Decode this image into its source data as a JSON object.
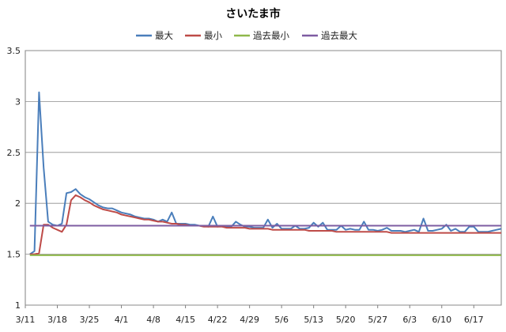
{
  "chart_data": {
    "type": "line",
    "title": "さいたま市",
    "xlabel": "",
    "ylabel": "",
    "ylim": [
      1,
      3.5
    ],
    "yticks": [
      "1",
      "1.5",
      "2",
      "2.5",
      "3",
      "3.5"
    ],
    "x_tick_labels": [
      "3/11",
      "3/18",
      "3/25",
      "4/1",
      "4/8",
      "4/15",
      "4/22",
      "4/29",
      "5/6",
      "5/13",
      "5/20",
      "5/27",
      "6/3",
      "6/10",
      "6/17"
    ],
    "x_start": "3/11",
    "x_end": "6/23",
    "grid": "horizontal",
    "legend_position": "top",
    "x": [
      "3/12",
      "3/13",
      "3/14",
      "3/15",
      "3/16",
      "3/17",
      "3/18",
      "3/19",
      "3/20",
      "3/21",
      "3/22",
      "3/23",
      "3/24",
      "3/25",
      "3/26",
      "3/27",
      "3/28",
      "3/29",
      "3/30",
      "3/31",
      "4/1",
      "4/2",
      "4/3",
      "4/4",
      "4/5",
      "4/6",
      "4/7",
      "4/8",
      "4/9",
      "4/10",
      "4/11",
      "4/12",
      "4/13",
      "4/14",
      "4/15",
      "4/16",
      "4/17",
      "4/18",
      "4/19",
      "4/20",
      "4/21",
      "4/22",
      "4/23",
      "4/24",
      "4/25",
      "4/26",
      "4/27",
      "4/28",
      "4/29",
      "4/30",
      "5/1",
      "5/2",
      "5/3",
      "5/4",
      "5/5",
      "5/6",
      "5/7",
      "5/8",
      "5/9",
      "5/10",
      "5/11",
      "5/12",
      "5/13",
      "5/14",
      "5/15",
      "5/16",
      "5/17",
      "5/18",
      "5/19",
      "5/20",
      "5/21",
      "5/22",
      "5/23",
      "5/24",
      "5/25",
      "5/26",
      "5/27",
      "5/28",
      "5/29",
      "5/30",
      "5/31",
      "6/1",
      "6/2",
      "6/3",
      "6/4",
      "6/5",
      "6/6",
      "6/7",
      "6/8",
      "6/9",
      "6/10",
      "6/11",
      "6/12",
      "6/13",
      "6/14",
      "6/15",
      "6/16",
      "6/17",
      "6/18",
      "6/19",
      "6/20",
      "6/21",
      "6/22",
      "6/23"
    ],
    "series": [
      {
        "name": "最大",
        "color": "#4a7ebb",
        "values": [
          1.5,
          1.53,
          3.09,
          2.35,
          1.82,
          1.79,
          1.78,
          1.8,
          2.1,
          2.11,
          2.14,
          2.09,
          2.06,
          2.04,
          2.01,
          1.98,
          1.96,
          1.95,
          1.95,
          1.93,
          1.91,
          1.9,
          1.89,
          1.87,
          1.86,
          1.85,
          1.85,
          1.84,
          1.82,
          1.84,
          1.82,
          1.91,
          1.8,
          1.8,
          1.8,
          1.79,
          1.79,
          1.78,
          1.78,
          1.77,
          1.87,
          1.77,
          1.78,
          1.77,
          1.77,
          1.82,
          1.79,
          1.77,
          1.77,
          1.76,
          1.76,
          1.76,
          1.84,
          1.76,
          1.8,
          1.75,
          1.75,
          1.75,
          1.78,
          1.75,
          1.75,
          1.76,
          1.81,
          1.77,
          1.81,
          1.74,
          1.74,
          1.74,
          1.78,
          1.74,
          1.75,
          1.74,
          1.74,
          1.82,
          1.74,
          1.74,
          1.73,
          1.74,
          1.76,
          1.73,
          1.73,
          1.73,
          1.72,
          1.73,
          1.74,
          1.72,
          1.85,
          1.73,
          1.73,
          1.74,
          1.75,
          1.79,
          1.73,
          1.75,
          1.72,
          1.72,
          1.77,
          1.77,
          1.72,
          1.72,
          1.72,
          1.73,
          1.74,
          1.75
        ]
      },
      {
        "name": "最小",
        "color": "#be4b48",
        "values": [
          1.5,
          1.5,
          1.51,
          1.79,
          1.79,
          1.76,
          1.74,
          1.72,
          1.79,
          2.03,
          2.08,
          2.06,
          2.03,
          2.01,
          1.98,
          1.96,
          1.94,
          1.93,
          1.92,
          1.91,
          1.89,
          1.88,
          1.87,
          1.86,
          1.85,
          1.84,
          1.84,
          1.83,
          1.82,
          1.82,
          1.81,
          1.8,
          1.8,
          1.79,
          1.79,
          1.78,
          1.78,
          1.78,
          1.77,
          1.77,
          1.77,
          1.77,
          1.77,
          1.76,
          1.76,
          1.76,
          1.76,
          1.76,
          1.75,
          1.75,
          1.75,
          1.75,
          1.75,
          1.74,
          1.74,
          1.74,
          1.74,
          1.74,
          1.74,
          1.74,
          1.74,
          1.73,
          1.73,
          1.73,
          1.73,
          1.73,
          1.73,
          1.72,
          1.72,
          1.72,
          1.72,
          1.72,
          1.72,
          1.72,
          1.72,
          1.72,
          1.72,
          1.72,
          1.72,
          1.71,
          1.71,
          1.71,
          1.71,
          1.71,
          1.71,
          1.71,
          1.71,
          1.71,
          1.71,
          1.71,
          1.71,
          1.71,
          1.71,
          1.71,
          1.71,
          1.71,
          1.71,
          1.71,
          1.71,
          1.71,
          1.71,
          1.71,
          1.71,
          1.71
        ]
      },
      {
        "name": "過去最小",
        "color": "#8fb84b",
        "constant": 1.49
      },
      {
        "name": "過去最大",
        "color": "#7e5ca2",
        "constant": 1.78
      }
    ]
  }
}
